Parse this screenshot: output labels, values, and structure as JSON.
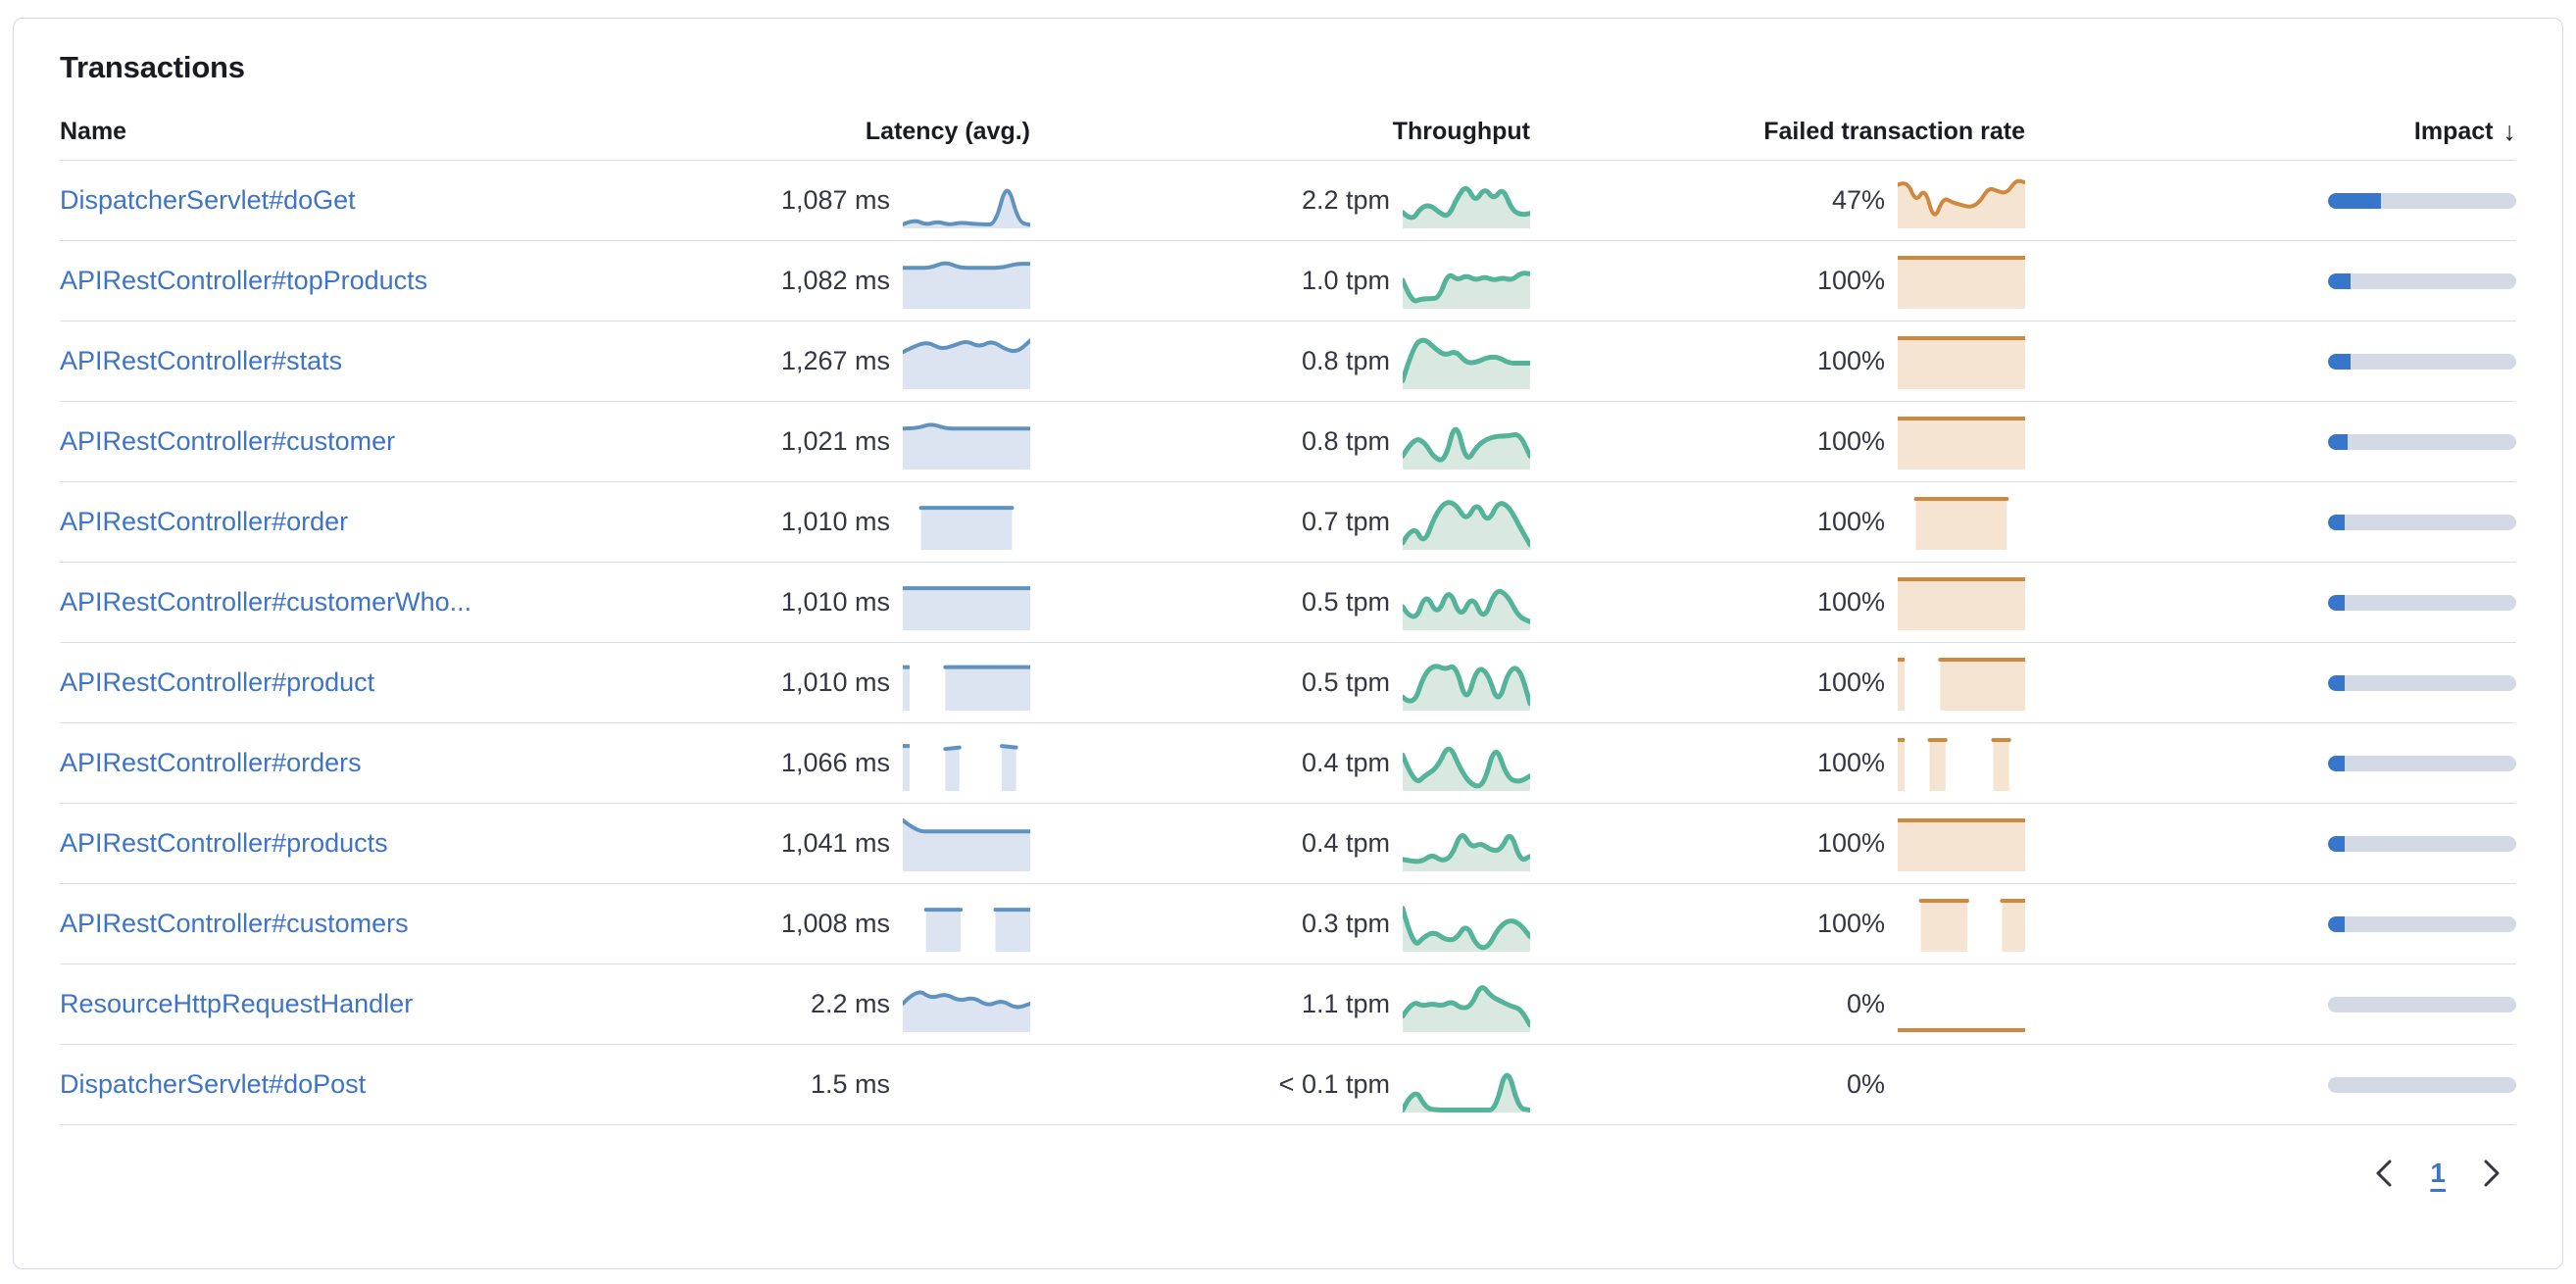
{
  "panel": {
    "title": "Transactions"
  },
  "colors": {
    "link": "#3d73c9",
    "heading": "#1a1c21",
    "text": "#343741",
    "border": "#d3dae6",
    "row_divider": "#d9dfe9",
    "latency_line": "#6092c0",
    "latency_fill": "#dbe4f0",
    "throughput_line": "#54b399",
    "throughput_fill": "#d9e9e1",
    "failed_line": "#d0883f",
    "failed_fill": "#f5e4d1",
    "impact_fill": "#3876cb",
    "impact_track": "#d3dae6"
  },
  "table": {
    "headers": [
      {
        "label": "Name"
      },
      {
        "label": "Latency (avg.)"
      },
      {
        "label": "Throughput"
      },
      {
        "label": "Failed transaction rate"
      },
      {
        "label": "Impact",
        "sorted": "desc",
        "sort_icon": "↓"
      }
    ],
    "rows": [
      {
        "name": "DispatcherServlet#doGet",
        "latency": "1,087 ms",
        "throughput": "2.2 tpm",
        "failed_rate": "47%",
        "impact_pct": 28,
        "lat_spark": [
          0.06,
          0.16,
          0.05,
          0.12,
          0.05,
          0.1,
          0.07,
          0.06,
          0.06,
          0.95,
          0.1,
          0.05
        ],
        "tpm_spark": [
          0.3,
          0.12,
          0.4,
          0.45,
          0.3,
          0.2,
          0.6,
          0.85,
          0.5,
          0.8,
          0.55,
          0.8,
          0.35,
          0.25,
          0.28
        ],
        "fail_spark": [
          0.85,
          0.95,
          0.5,
          0.8,
          0.12,
          0.6,
          0.5,
          0.45,
          0.4,
          0.5,
          0.8,
          0.72,
          0.68,
          0.95,
          0.9
        ]
      },
      {
        "name": "APIRestController#topProducts",
        "latency": "1,082 ms",
        "throughput": "1.0 tpm",
        "failed_rate": "100%",
        "impact_pct": 12,
        "lat_spark": [
          0.8,
          0.8,
          0.8,
          0.92,
          0.8,
          0.8,
          0.8,
          0.8,
          0.88,
          0.88
        ],
        "tpm_spark": [
          0.55,
          0.1,
          0.18,
          0.18,
          0.2,
          0.7,
          0.55,
          0.65,
          0.55,
          0.62,
          0.55,
          0.6,
          0.55,
          0.7,
          0.68
        ],
        "fail_spark": [
          1,
          1,
          1,
          1,
          1,
          1,
          1,
          1
        ]
      },
      {
        "name": "APIRestController#stats",
        "latency": "1,267 ms",
        "throughput": "0.8 tpm",
        "failed_rate": "100%",
        "impact_pct": 12,
        "lat_spark": [
          0.72,
          0.85,
          0.92,
          0.78,
          0.85,
          0.95,
          0.82,
          0.95,
          0.78,
          0.72,
          0.95
        ],
        "tpm_spark": [
          0.15,
          0.85,
          1,
          0.8,
          0.65,
          0.75,
          0.5,
          0.52,
          0.62,
          0.62,
          0.5,
          0.5,
          0.5
        ],
        "fail_spark": [
          1,
          1,
          1,
          1,
          1,
          1,
          1,
          1
        ]
      },
      {
        "name": "APIRestController#customer",
        "latency": "1,021 ms",
        "throughput": "0.8 tpm",
        "failed_rate": "100%",
        "impact_pct": 10.5,
        "lat_spark": [
          0.8,
          0.8,
          0.9,
          0.8,
          0.8,
          0.8,
          0.8,
          0.8,
          0.8,
          0.8
        ],
        "tpm_spark": [
          0.25,
          0.6,
          0.55,
          0.2,
          0.15,
          1,
          0.1,
          0.45,
          0.6,
          0.65,
          0.65,
          0.7,
          0.25
        ],
        "fail_spark": [
          1,
          1,
          1,
          1,
          1,
          1,
          1,
          1
        ]
      },
      {
        "name": "APIRestController#order",
        "latency": "1,010 ms",
        "throughput": "0.7 tpm",
        "failed_rate": "100%",
        "impact_pct": 9,
        "lat_spark": [
          null,
          0.82,
          0.82,
          0.82,
          0.82,
          0.82,
          0.82,
          null
        ],
        "tpm_spark": [
          0.12,
          0.5,
          0.08,
          0.65,
          0.95,
          0.9,
          0.55,
          0.95,
          0.5,
          0.95,
          0.85,
          0.45,
          0.08
        ],
        "fail_spark": [
          null,
          1,
          1,
          1,
          1,
          1,
          1,
          null
        ]
      },
      {
        "name": "APIRestController#customerWho...",
        "latency": "1,010 ms",
        "throughput": "0.5 tpm",
        "failed_rate": "100%",
        "impact_pct": 6.5,
        "lat_spark": [
          0.82,
          0.82,
          0.82,
          0.82,
          0.82,
          0.82,
          0.82,
          0.82
        ],
        "tpm_spark": [
          0.45,
          0.08,
          0.75,
          0.25,
          0.85,
          0.2,
          0.7,
          0.15,
          0.8,
          0.7,
          0.25,
          0.15
        ],
        "fail_spark": [
          1,
          1,
          1,
          1,
          1,
          1,
          1,
          1
        ]
      },
      {
        "name": "APIRestController#product",
        "latency": "1,010 ms",
        "throughput": "0.5 tpm",
        "failed_rate": "100%",
        "impact_pct": 6.5,
        "lat_spark": [
          0.85,
          null,
          null,
          0.85,
          0.85,
          0.85,
          0.85,
          0.85,
          0.85,
          0.85
        ],
        "tpm_spark": [
          0.25,
          0.05,
          0.7,
          0.9,
          0.8,
          0.9,
          0.1,
          0.85,
          0.75,
          0.08,
          0.8,
          0.85,
          0.12
        ],
        "fail_spark": [
          1,
          null,
          null,
          1,
          1,
          1,
          1,
          1,
          1,
          1
        ]
      },
      {
        "name": "APIRestController#orders",
        "latency": "1,066 ms",
        "throughput": "0.4 tpm",
        "failed_rate": "100%",
        "impact_pct": 5.5,
        "lat_spark": [
          0.88,
          null,
          null,
          0.82,
          0.85,
          null,
          null,
          0.88,
          0.85,
          null
        ],
        "tpm_spark": [
          0.7,
          0.1,
          0.3,
          0.45,
          0.95,
          0.4,
          0.08,
          0.08,
          0.95,
          0.25,
          0.15,
          0.28
        ],
        "fail_spark": [
          1,
          null,
          1,
          1,
          null,
          null,
          1,
          1,
          null
        ]
      },
      {
        "name": "APIRestController#products",
        "latency": "1,041 ms",
        "throughput": "0.4 tpm",
        "failed_rate": "100%",
        "impact_pct": 5.5,
        "lat_spark": [
          1,
          0.78,
          0.78,
          0.78,
          0.78,
          0.78,
          0.78,
          0.78,
          0.78,
          0.78
        ],
        "tpm_spark": [
          0.22,
          0.18,
          0.18,
          0.32,
          0.18,
          0.28,
          0.8,
          0.45,
          0.55,
          0.4,
          0.4,
          0.8,
          0.18,
          0.28
        ],
        "fail_spark": [
          1,
          1,
          1,
          1,
          1,
          1,
          1,
          1
        ]
      },
      {
        "name": "APIRestController#customers",
        "latency": "1,008 ms",
        "throughput": "0.3 tpm",
        "failed_rate": "100%",
        "impact_pct": 5,
        "lat_spark": [
          null,
          null,
          0.82,
          0.82,
          0.82,
          0.82,
          null,
          null,
          0.82,
          0.82,
          0.82,
          0.82
        ],
        "tpm_spark": [
          0.85,
          0.05,
          0.28,
          0.38,
          0.22,
          0.22,
          0.55,
          0.08,
          0.05,
          0.45,
          0.62,
          0.55,
          0.28
        ],
        "fail_spark": [
          null,
          null,
          1,
          1,
          1,
          1,
          1,
          null,
          null,
          1,
          1,
          1
        ]
      },
      {
        "name": "ResourceHttpRequestHandler",
        "latency": "2.2 ms",
        "throughput": "1.1 tpm",
        "failed_rate": "0%",
        "impact_pct": 0,
        "lat_spark": [
          0.55,
          0.85,
          0.65,
          0.75,
          0.6,
          0.68,
          0.5,
          0.62,
          0.45,
          0.55
        ],
        "tpm_spark": [
          0.3,
          0.6,
          0.5,
          0.55,
          0.5,
          0.6,
          0.45,
          0.5,
          0.95,
          0.7,
          0.6,
          0.5,
          0.45,
          0.12
        ],
        "fail_spark": [
          0.02,
          0.02,
          0.02,
          0.02,
          0.02,
          0.02,
          0.02,
          0.02,
          0.02,
          0.02,
          0.02,
          0.02
        ]
      },
      {
        "name": "DispatcherServlet#doPost",
        "latency": "1.5 ms",
        "throughput": "< 0.1 tpm",
        "failed_rate": "0%",
        "impact_pct": 0,
        "lat_spark": [],
        "tpm_spark": [
          0.03,
          0.5,
          0.06,
          0.03,
          0.03,
          0.03,
          0.03,
          0.03,
          0.03,
          0.95,
          0.06,
          0.03
        ],
        "fail_spark": []
      }
    ]
  },
  "pagination": {
    "current_page": "1",
    "prev_icon": "chevron-left",
    "next_icon": "chevron-right"
  }
}
